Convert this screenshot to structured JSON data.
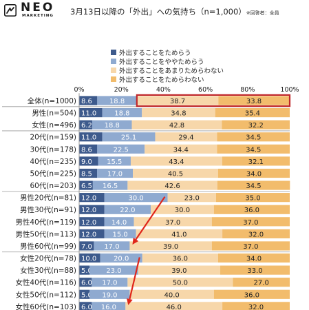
{
  "header": {
    "logo_text": "NEO",
    "logo_sub": "MARKETING",
    "title": "3月13日以降の「外出」への気持ち（n=1,000）",
    "title_note": "※回答者：全員"
  },
  "colors": {
    "s1": "#3d5a8c",
    "s2": "#8faad0",
    "s3": "#f7d7aa",
    "s4": "#f2bc6c",
    "highlight": "#c0282b",
    "arrow": "#e0261b"
  },
  "chart_data": {
    "type": "bar",
    "orientation": "horizontal-stacked-100",
    "xlim": [
      0,
      100
    ],
    "x_ticks": [
      "0%",
      "20%",
      "40%",
      "60%",
      "80%",
      "100%"
    ],
    "series": [
      {
        "name": "外出することをためらう"
      },
      {
        "name": "外出することをややためらう"
      },
      {
        "name": "外出することをあまりためらわない"
      },
      {
        "name": "外出することをためらわない"
      }
    ],
    "categories": [
      "全体(n=1000)",
      "男性(n=504)",
      "女性(n=496)",
      "20代(n=159)",
      "30代(n=178)",
      "40代(n=235)",
      "50代(n=225)",
      "60代(n=203)",
      "男性20代(n=81)",
      "男性30代(n=91)",
      "男性40代(n=119)",
      "男性50代(n=113)",
      "男性60代(n=99)",
      "女性20代(n=78)",
      "女性30代(n=88)",
      "女性40代(n=116)",
      "女性50代(n=112)",
      "女性60代(n=103)"
    ],
    "values": [
      [
        8.6,
        18.8,
        38.7,
        33.8
      ],
      [
        11.0,
        18.8,
        34.8,
        35.4
      ],
      [
        6.2,
        18.8,
        42.8,
        32.2
      ],
      [
        11.0,
        25.1,
        29.4,
        34.5
      ],
      [
        8.6,
        22.5,
        34.4,
        34.5
      ],
      [
        9.0,
        15.5,
        43.4,
        32.1
      ],
      [
        8.5,
        17.0,
        40.5,
        34.0
      ],
      [
        6.5,
        16.5,
        42.6,
        34.5
      ],
      [
        12.0,
        30.0,
        23.0,
        35.0
      ],
      [
        12.0,
        22.0,
        30.0,
        36.0
      ],
      [
        12.0,
        14.0,
        37.0,
        37.0
      ],
      [
        12.0,
        15.0,
        41.0,
        32.0
      ],
      [
        7.0,
        17.0,
        39.0,
        37.0
      ],
      [
        10.0,
        20.0,
        36.0,
        34.0
      ],
      [
        5.0,
        23.0,
        39.0,
        33.0
      ],
      [
        6.0,
        17.0,
        50.0,
        27.0
      ],
      [
        5.0,
        19.0,
        40.0,
        36.0
      ],
      [
        6.0,
        16.0,
        46.0,
        32.0
      ]
    ],
    "labels": [
      [
        "8.6",
        "18.8",
        "38.7",
        "33.8"
      ],
      [
        "11.0",
        "18.8",
        "34.8",
        "35.4"
      ],
      [
        "6.2",
        "18.8",
        "42.8",
        "32.2"
      ],
      [
        "11.0",
        "25.1",
        "29.4",
        "34.5"
      ],
      [
        "8.6",
        "22.5",
        "34.4",
        "34.5"
      ],
      [
        "9.0",
        "15.5",
        "43.4",
        "32.1"
      ],
      [
        "8.5",
        "17.0",
        "40.5",
        "34.0"
      ],
      [
        "6.5",
        "16.5",
        "42.6",
        "34.5"
      ],
      [
        "12.0",
        "30.0",
        "23.0",
        "35.0"
      ],
      [
        "12.0",
        "22.0",
        "30.0",
        "36.0"
      ],
      [
        "12.0",
        "14.0",
        "37.0",
        "37.0"
      ],
      [
        "12.0",
        "15.0",
        "41.0",
        "32.0"
      ],
      [
        "7.0",
        "17.0",
        "39.0",
        "37.0"
      ],
      [
        "10.0",
        "20.0",
        "36.0",
        "34.0"
      ],
      [
        "5.0",
        "23.0",
        "39.0",
        "33.0"
      ],
      [
        "6.0",
        "17.0",
        "50.0",
        "27.0"
      ],
      [
        "5.0",
        "19.0",
        "40.0",
        "36.0"
      ],
      [
        "6.0",
        "16.0",
        "46.0",
        "32.0"
      ]
    ],
    "highlight_row": 0,
    "group_separators_after": [
      0,
      2,
      7,
      12
    ],
    "arrows": [
      [
        8,
        12
      ],
      [
        13,
        17
      ]
    ]
  }
}
